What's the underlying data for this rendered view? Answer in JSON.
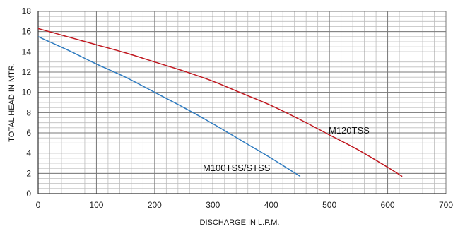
{
  "chart_data": {
    "type": "line",
    "xlabel": "DISCHARGE IN L.P.M.",
    "ylabel": "TOTAL HEAD IN MTR.",
    "xlim": [
      0,
      700
    ],
    "ylim": [
      0,
      18
    ],
    "x_ticks": [
      0,
      100,
      200,
      300,
      400,
      500,
      600,
      700
    ],
    "y_ticks": [
      0,
      2,
      4,
      6,
      8,
      10,
      12,
      14,
      16,
      18
    ],
    "grid": true,
    "series": [
      {
        "name": "M100TSS/STSS",
        "color": "#2E7BC0",
        "x": [
          0,
          50,
          100,
          150,
          200,
          250,
          300,
          350,
          400,
          450
        ],
        "y": [
          15.5,
          14.2,
          12.8,
          11.5,
          10.0,
          8.5,
          6.9,
          5.2,
          3.5,
          1.7
        ]
      },
      {
        "name": "M120TSS",
        "color": "#C0161E",
        "x": [
          0,
          50,
          100,
          150,
          200,
          250,
          300,
          350,
          400,
          450,
          500,
          550,
          600,
          625
        ],
        "y": [
          16.3,
          15.5,
          14.7,
          13.9,
          13.0,
          12.1,
          11.1,
          9.9,
          8.7,
          7.3,
          5.8,
          4.3,
          2.6,
          1.7
        ]
      }
    ],
    "labels": {
      "series_a": "M100TSS/STSS",
      "series_b": "M120TSS"
    }
  }
}
